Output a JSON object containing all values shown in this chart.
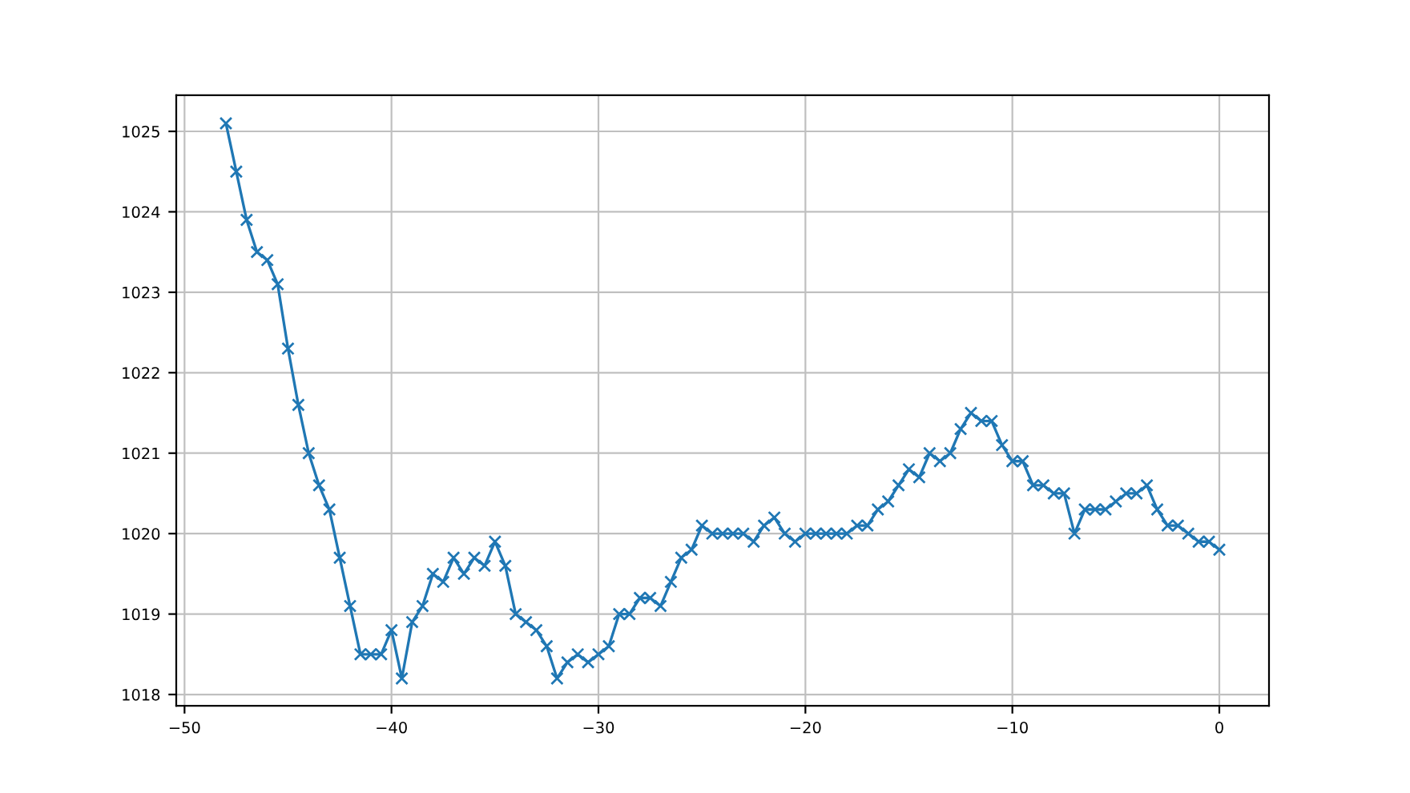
{
  "chart_data": {
    "type": "line",
    "marker": "cross",
    "line_style": "solid",
    "grid": true,
    "x": [
      -48,
      -47.5,
      -47,
      -46.5,
      -46,
      -45.5,
      -45,
      -44.5,
      -44,
      -43.5,
      -43,
      -42.5,
      -42,
      -41.5,
      -41,
      -40.5,
      -40,
      -39.5,
      -39,
      -38.5,
      -38,
      -37.5,
      -37,
      -36.5,
      -36,
      -35.5,
      -35,
      -34.5,
      -34,
      -33.5,
      -33,
      -32.5,
      -32,
      -31.5,
      -31,
      -30.5,
      -30,
      -29.5,
      -29,
      -28.5,
      -28,
      -27.5,
      -27,
      -26.5,
      -26,
      -25.5,
      -25,
      -24.5,
      -24,
      -23.5,
      -23,
      -22.5,
      -22,
      -21.5,
      -21,
      -20.5,
      -20,
      -19.5,
      -19,
      -18.5,
      -18,
      -17.5,
      -17,
      -16.5,
      -16,
      -15.5,
      -15,
      -14.5,
      -14,
      -13.5,
      -13,
      -12.5,
      -12,
      -11.5,
      -11,
      -10.5,
      -10,
      -9.5,
      -9,
      -8.5,
      -8,
      -7.5,
      -7,
      -6.5,
      -6,
      -5.5,
      -5,
      -4.5,
      -4,
      -3.5,
      -3,
      -2.5,
      -2,
      -1.5,
      -1,
      -0.5,
      0
    ],
    "series": [
      {
        "color": "#1f77b4",
        "values": [
          1025.1,
          1024.5,
          1023.9,
          1023.5,
          1023.4,
          1023.1,
          1022.3,
          1021.6,
          1021.0,
          1020.6,
          1020.3,
          1019.7,
          1019.1,
          1018.5,
          1018.5,
          1018.5,
          1018.8,
          1018.2,
          1018.9,
          1019.1,
          1019.5,
          1019.4,
          1019.7,
          1019.5,
          1019.7,
          1019.6,
          1019.9,
          1019.6,
          1019.0,
          1018.9,
          1018.8,
          1018.6,
          1018.2,
          1018.4,
          1018.5,
          1018.4,
          1018.5,
          1018.6,
          1019.0,
          1019.0,
          1019.2,
          1019.2,
          1019.1,
          1019.4,
          1019.7,
          1019.8,
          1020.1,
          1020.0,
          1020.0,
          1020.0,
          1020.0,
          1019.9,
          1020.1,
          1020.2,
          1020.0,
          1019.9,
          1020.0,
          1020.0,
          1020.0,
          1020.0,
          1020.0,
          1020.1,
          1020.1,
          1020.3,
          1020.4,
          1020.6,
          1020.8,
          1020.7,
          1021.0,
          1020.9,
          1021.0,
          1021.3,
          1021.5,
          1021.4,
          1021.4,
          1021.1,
          1020.9,
          1020.9,
          1020.6,
          1020.6,
          1020.5,
          1020.5,
          1020.0,
          1020.3,
          1020.3,
          1020.3,
          1020.4,
          1020.5,
          1020.5,
          1020.6,
          1020.3,
          1020.1,
          1020.1,
          1020.0,
          1019.9,
          1019.9,
          1019.8
        ]
      }
    ],
    "xlim": [
      -50.4,
      2.4
    ],
    "ylim": [
      1017.86,
      1025.45
    ],
    "xticks": [
      {
        "value": -50,
        "label": "−50"
      },
      {
        "value": -40,
        "label": "−40"
      },
      {
        "value": -30,
        "label": "−30"
      },
      {
        "value": -20,
        "label": "−20"
      },
      {
        "value": -10,
        "label": "−10"
      },
      0
    ],
    "yticks": [
      1018,
      1019,
      1020,
      1021,
      1022,
      1023,
      1024,
      1025
    ]
  }
}
